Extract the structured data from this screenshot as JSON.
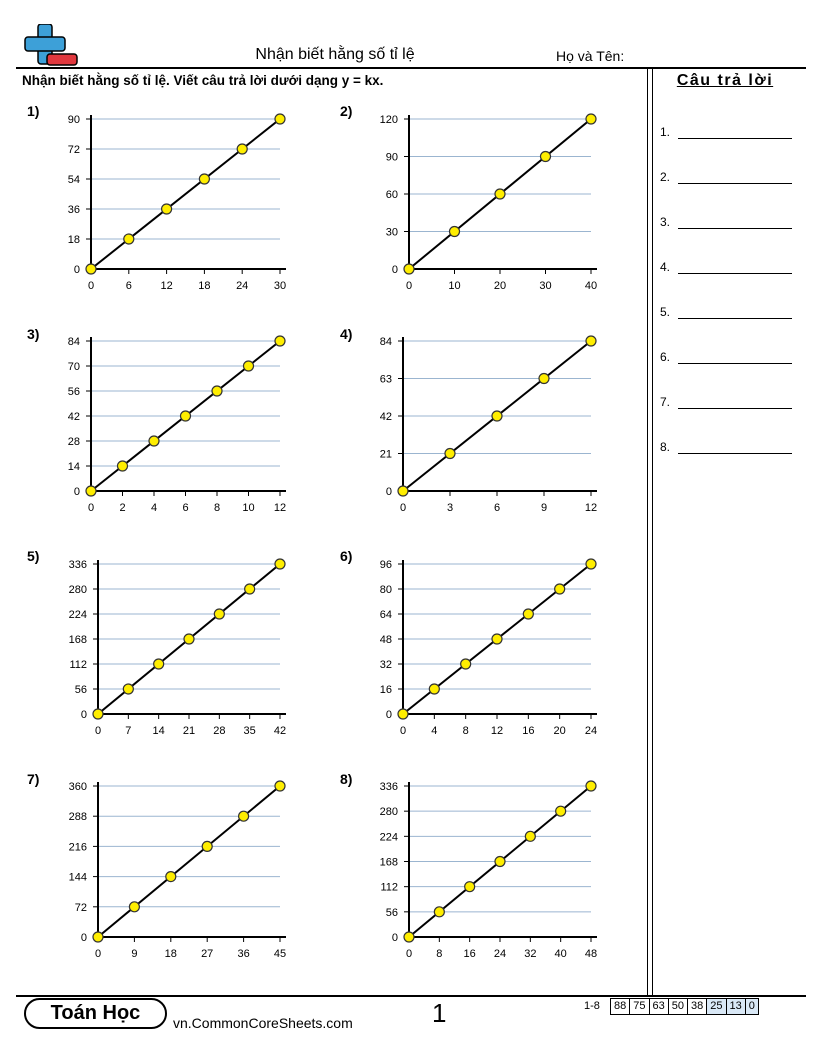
{
  "header": {
    "title": "Nhận biết hằng số tỉ lệ",
    "name_label": "Họ và Tên:"
  },
  "instructions": "Nhận biết hằng số tỉ lệ. Viết câu trả lời dưới dạng y = kx.",
  "answer_panel": {
    "title": "Câu trả lời",
    "items": [
      "1.",
      "2.",
      "3.",
      "4.",
      "5.",
      "6.",
      "7.",
      "8."
    ]
  },
  "footer": {
    "brand": "Toán Học",
    "site": "vn.CommonCoreSheets.com",
    "page": "1",
    "score_label": "1-8",
    "scores": [
      "88",
      "75",
      "63",
      "50",
      "38",
      "25",
      "13",
      "0"
    ]
  },
  "colors": {
    "gridline": "#9bb5d0",
    "point_fill": "#ffee00",
    "point_stroke": "#333333",
    "score_highlight": "#d9e8f6"
  },
  "chart_data": [
    {
      "type": "line",
      "label": "1)",
      "x_ticks": [
        "0",
        "6",
        "12",
        "18",
        "24",
        "30"
      ],
      "y_ticks": [
        "0",
        "18",
        "36",
        "54",
        "72",
        "90"
      ],
      "xlim": [
        0,
        30
      ],
      "ylim": [
        0,
        90
      ],
      "x": [
        0,
        6,
        12,
        18,
        24,
        30
      ],
      "y": [
        0,
        18,
        36,
        54,
        72,
        90
      ],
      "grid": true
    },
    {
      "type": "line",
      "label": "2)",
      "x_ticks": [
        "0",
        "10",
        "20",
        "30",
        "40"
      ],
      "y_ticks": [
        "0",
        "30",
        "60",
        "90",
        "120"
      ],
      "xlim": [
        0,
        40
      ],
      "ylim": [
        0,
        120
      ],
      "x": [
        0,
        10,
        20,
        30,
        40
      ],
      "y": [
        0,
        30,
        60,
        90,
        120
      ],
      "grid": true
    },
    {
      "type": "line",
      "label": "3)",
      "x_ticks": [
        "0",
        "2",
        "4",
        "6",
        "8",
        "10",
        "12"
      ],
      "y_ticks": [
        "0",
        "14",
        "28",
        "42",
        "56",
        "70",
        "84"
      ],
      "xlim": [
        0,
        12
      ],
      "ylim": [
        0,
        84
      ],
      "x": [
        0,
        2,
        4,
        6,
        8,
        10,
        12
      ],
      "y": [
        0,
        14,
        28,
        42,
        56,
        70,
        84
      ],
      "grid": true
    },
    {
      "type": "line",
      "label": "4)",
      "x_ticks": [
        "0",
        "3",
        "6",
        "9",
        "12"
      ],
      "y_ticks": [
        "0",
        "21",
        "42",
        "63",
        "84"
      ],
      "xlim": [
        0,
        12
      ],
      "ylim": [
        0,
        84
      ],
      "x": [
        0,
        3,
        6,
        9,
        12
      ],
      "y": [
        0,
        21,
        42,
        63,
        84
      ],
      "grid": true
    },
    {
      "type": "line",
      "label": "5)",
      "x_ticks": [
        "0",
        "7",
        "14",
        "21",
        "28",
        "35",
        "42"
      ],
      "y_ticks": [
        "0",
        "56",
        "112",
        "168",
        "224",
        "280",
        "336"
      ],
      "xlim": [
        0,
        42
      ],
      "ylim": [
        0,
        336
      ],
      "x": [
        0,
        7,
        14,
        21,
        28,
        35,
        42
      ],
      "y": [
        0,
        56,
        112,
        168,
        224,
        280,
        336
      ],
      "grid": true
    },
    {
      "type": "line",
      "label": "6)",
      "x_ticks": [
        "0",
        "4",
        "8",
        "12",
        "16",
        "20",
        "24"
      ],
      "y_ticks": [
        "0",
        "16",
        "32",
        "48",
        "64",
        "80",
        "96"
      ],
      "xlim": [
        0,
        24
      ],
      "ylim": [
        0,
        96
      ],
      "x": [
        0,
        4,
        8,
        12,
        16,
        20,
        24
      ],
      "y": [
        0,
        16,
        32,
        48,
        64,
        80,
        96
      ],
      "grid": true
    },
    {
      "type": "line",
      "label": "7)",
      "x_ticks": [
        "0",
        "9",
        "18",
        "27",
        "36",
        "45"
      ],
      "y_ticks": [
        "0",
        "72",
        "144",
        "216",
        "288",
        "360"
      ],
      "xlim": [
        0,
        45
      ],
      "ylim": [
        0,
        360
      ],
      "x": [
        0,
        9,
        18,
        27,
        36,
        45
      ],
      "y": [
        0,
        72,
        144,
        216,
        288,
        360
      ],
      "grid": true
    },
    {
      "type": "line",
      "label": "8)",
      "x_ticks": [
        "0",
        "8",
        "16",
        "24",
        "32",
        "40",
        "48"
      ],
      "y_ticks": [
        "0",
        "56",
        "112",
        "168",
        "224",
        "280",
        "336"
      ],
      "xlim": [
        0,
        48
      ],
      "ylim": [
        0,
        336
      ],
      "x": [
        0,
        8,
        16,
        24,
        32,
        40,
        48
      ],
      "y": [
        0,
        56,
        112,
        168,
        224,
        280,
        336
      ],
      "grid": true
    }
  ]
}
